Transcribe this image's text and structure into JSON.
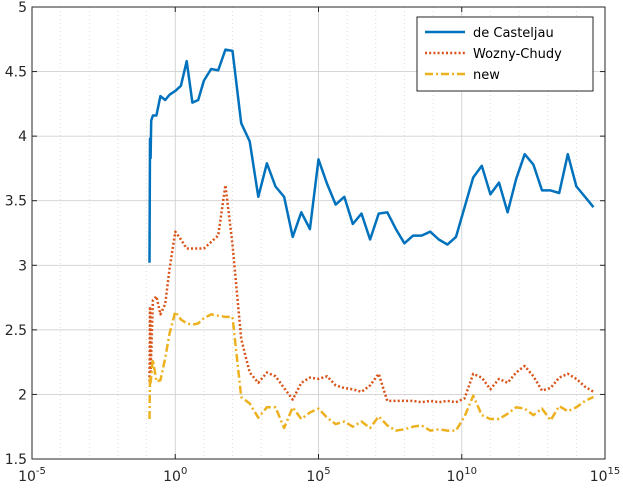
{
  "chart_data": {
    "type": "line",
    "x_scale": "log",
    "xlim": [
      1e-05,
      1000000000000000.0
    ],
    "ylim": [
      1.5,
      5
    ],
    "grid": true,
    "legend_placement": "top-right",
    "x_ticks": [
      {
        "value": 1e-05,
        "base": "10",
        "exp": "-5"
      },
      {
        "value": 1,
        "base": "10",
        "exp": "0"
      },
      {
        "value": 100000.0,
        "base": "10",
        "exp": "5"
      },
      {
        "value": 10000000000.0,
        "base": "10",
        "exp": "10"
      },
      {
        "value": 1000000000000000.0,
        "base": "10",
        "exp": "15"
      }
    ],
    "y_ticks": [
      "1.5",
      "2",
      "2.5",
      "3",
      "3.5",
      "4",
      "4.5",
      "5"
    ],
    "series": [
      {
        "name": "de Casteljau",
        "color": "#0072bd",
        "style": "solid",
        "points": [
          [
            0.126,
            3.02
          ],
          [
            0.131,
            3.98
          ],
          [
            0.138,
            3.83
          ],
          [
            0.145,
            4.12
          ],
          [
            0.166,
            4.16
          ],
          [
            0.219,
            4.16
          ],
          [
            0.302,
            4.31
          ],
          [
            0.447,
            4.28
          ],
          [
            0.631,
            4.32
          ],
          [
            1.0,
            4.35
          ],
          [
            1.58,
            4.39
          ],
          [
            2.51,
            4.58
          ],
          [
            3.98,
            4.26
          ],
          [
            6.31,
            4.28
          ],
          [
            10.0,
            4.43
          ],
          [
            17.8,
            4.52
          ],
          [
            31.6,
            4.51
          ],
          [
            56.2,
            4.67
          ],
          [
            100,
            4.66
          ],
          [
            200,
            4.1
          ],
          [
            398,
            3.96
          ],
          [
            794,
            3.53
          ],
          [
            1580,
            3.79
          ],
          [
            3160,
            3.61
          ],
          [
            6310,
            3.53
          ],
          [
            12600,
            3.22
          ],
          [
            25100,
            3.41
          ],
          [
            50100,
            3.28
          ],
          [
            100000,
            3.82
          ],
          [
            200000,
            3.63
          ],
          [
            398000,
            3.47
          ],
          [
            794000,
            3.53
          ],
          [
            1580000,
            3.32
          ],
          [
            3160000,
            3.4
          ],
          [
            6310000,
            3.2
          ],
          [
            12600000,
            3.4
          ],
          [
            25100000,
            3.41
          ],
          [
            50100000,
            3.28
          ],
          [
            100000000,
            3.17
          ],
          [
            200000000,
            3.23
          ],
          [
            398000000,
            3.23
          ],
          [
            794000000,
            3.26
          ],
          [
            1580000000,
            3.2
          ],
          [
            3160000000,
            3.16
          ],
          [
            6310000000,
            3.22
          ],
          [
            12600000000,
            3.45
          ],
          [
            25100000000,
            3.68
          ],
          [
            50100000000,
            3.77
          ],
          [
            100000000000,
            3.55
          ],
          [
            200000000000,
            3.64
          ],
          [
            398000000000,
            3.41
          ],
          [
            794000000000,
            3.67
          ],
          [
            1580000000000,
            3.86
          ],
          [
            3160000000000,
            3.78
          ],
          [
            6310000000000,
            3.58
          ],
          [
            12600000000000,
            3.58
          ],
          [
            25100000000000,
            3.56
          ],
          [
            50100000000000,
            3.86
          ],
          [
            100000000000000,
            3.61
          ],
          [
            200000000000000,
            3.53
          ],
          [
            398000000000000,
            3.45
          ]
        ]
      },
      {
        "name": "Wozny-Chudy",
        "color": "#d95319",
        "style": "dotted",
        "points": [
          [
            0.126,
            2.1
          ],
          [
            0.131,
            2.68
          ],
          [
            0.138,
            2.16
          ],
          [
            0.166,
            2.73
          ],
          [
            0.219,
            2.76
          ],
          [
            0.302,
            2.62
          ],
          [
            0.447,
            2.7
          ],
          [
            0.631,
            2.97
          ],
          [
            1.0,
            3.26
          ],
          [
            1.58,
            3.2
          ],
          [
            2.51,
            3.13
          ],
          [
            3.98,
            3.13
          ],
          [
            6.31,
            3.13
          ],
          [
            10.0,
            3.13
          ],
          [
            17.8,
            3.18
          ],
          [
            31.6,
            3.23
          ],
          [
            56.2,
            3.62
          ],
          [
            100,
            3.16
          ],
          [
            200,
            2.43
          ],
          [
            398,
            2.17
          ],
          [
            794,
            2.09
          ],
          [
            1580,
            2.17
          ],
          [
            3160,
            2.14
          ],
          [
            6310,
            2.05
          ],
          [
            12600,
            1.96
          ],
          [
            25100,
            2.09
          ],
          [
            50100,
            2.13
          ],
          [
            100000,
            2.12
          ],
          [
            200000,
            2.14
          ],
          [
            398000,
            2.07
          ],
          [
            794000,
            2.05
          ],
          [
            1580000,
            2.04
          ],
          [
            3160000,
            2.02
          ],
          [
            6310000,
            2.07
          ],
          [
            12600000,
            2.16
          ],
          [
            25100000,
            1.95
          ],
          [
            50100000,
            1.95
          ],
          [
            100000000,
            1.95
          ],
          [
            200000000,
            1.95
          ],
          [
            398000000,
            1.94
          ],
          [
            794000000,
            1.95
          ],
          [
            1580000000,
            1.94
          ],
          [
            3160000000,
            1.95
          ],
          [
            6310000000,
            1.94
          ],
          [
            12600000000,
            1.97
          ],
          [
            25100000000,
            2.16
          ],
          [
            50100000000,
            2.13
          ],
          [
            100000000000,
            2.04
          ],
          [
            200000000000,
            2.12
          ],
          [
            398000000000,
            2.09
          ],
          [
            794000000000,
            2.17
          ],
          [
            1580000000000,
            2.22
          ],
          [
            3160000000000,
            2.14
          ],
          [
            6310000000000,
            2.03
          ],
          [
            12600000000000,
            2.05
          ],
          [
            25100000000000,
            2.13
          ],
          [
            50100000000000,
            2.16
          ],
          [
            100000000000000,
            2.12
          ],
          [
            200000000000000,
            2.06
          ],
          [
            398000000000000,
            2.02
          ]
        ]
      },
      {
        "name": "new",
        "color": "#edb120",
        "style": "dashdot",
        "points": [
          [
            0.126,
            1.81
          ],
          [
            0.131,
            2.14
          ],
          [
            0.138,
            2.09
          ],
          [
            0.166,
            2.27
          ],
          [
            0.219,
            2.1
          ],
          [
            0.302,
            2.11
          ],
          [
            0.447,
            2.28
          ],
          [
            0.631,
            2.47
          ],
          [
            1.0,
            2.64
          ],
          [
            1.58,
            2.58
          ],
          [
            2.51,
            2.55
          ],
          [
            3.98,
            2.54
          ],
          [
            6.31,
            2.55
          ],
          [
            10.0,
            2.59
          ],
          [
            17.8,
            2.62
          ],
          [
            31.6,
            2.61
          ],
          [
            56.2,
            2.6
          ],
          [
            100,
            2.6
          ],
          [
            200,
            1.98
          ],
          [
            398,
            1.93
          ],
          [
            794,
            1.82
          ],
          [
            1580,
            1.9
          ],
          [
            3160,
            1.9
          ],
          [
            6310,
            1.74
          ],
          [
            12600,
            1.9
          ],
          [
            25100,
            1.81
          ],
          [
            50100,
            1.86
          ],
          [
            100000,
            1.89
          ],
          [
            200000,
            1.82
          ],
          [
            398000,
            1.77
          ],
          [
            794000,
            1.79
          ],
          [
            1580000,
            1.75
          ],
          [
            3160000,
            1.79
          ],
          [
            6310000,
            1.74
          ],
          [
            12600000,
            1.83
          ],
          [
            25100000,
            1.76
          ],
          [
            50100000,
            1.72
          ],
          [
            100000000,
            1.73
          ],
          [
            200000000,
            1.75
          ],
          [
            398000000,
            1.76
          ],
          [
            794000000,
            1.72
          ],
          [
            1580000000,
            1.73
          ],
          [
            3160000000,
            1.72
          ],
          [
            6310000000,
            1.72
          ],
          [
            12600000000,
            1.83
          ],
          [
            25100000000,
            1.99
          ],
          [
            50100000000,
            1.84
          ],
          [
            100000000000,
            1.81
          ],
          [
            200000000000,
            1.81
          ],
          [
            398000000000,
            1.85
          ],
          [
            794000000000,
            1.9
          ],
          [
            1580000000000,
            1.89
          ],
          [
            3160000000000,
            1.84
          ],
          [
            6310000000000,
            1.89
          ],
          [
            12600000000000,
            1.8
          ],
          [
            25100000000000,
            1.91
          ],
          [
            50100000000000,
            1.87
          ],
          [
            100000000000000,
            1.9
          ],
          [
            200000000000000,
            1.95
          ],
          [
            398000000000000,
            1.98
          ]
        ]
      }
    ]
  }
}
